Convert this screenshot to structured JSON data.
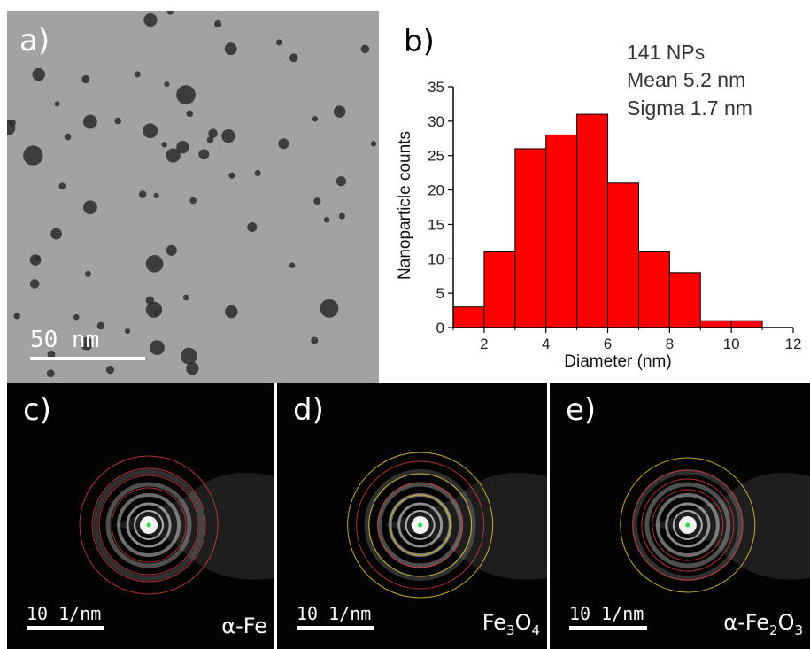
{
  "panels": {
    "a": {
      "label": "a)",
      "scale_bar": "50 nm"
    },
    "b": {
      "label": "b)"
    },
    "c": {
      "label": "c)",
      "scale_bar": "10 1/nm",
      "phase": "α-Fe"
    },
    "d": {
      "label": "d)",
      "scale_bar": "10 1/nm",
      "phase_parts": [
        "Fe",
        "3",
        "O",
        "4"
      ]
    },
    "e": {
      "label": "e)",
      "scale_bar": "10 1/nm",
      "phase_parts": [
        "α-Fe",
        "2",
        "O",
        "3"
      ]
    }
  },
  "chart_data": {
    "type": "bar",
    "bin_edges": [
      1,
      2,
      3,
      4,
      5,
      6,
      7,
      8,
      9,
      10,
      11
    ],
    "values": [
      3,
      11,
      26,
      28,
      31,
      21,
      11,
      8,
      1,
      1
    ],
    "xlabel": "Diameter (nm)",
    "ylabel": "Nanoparticle counts",
    "xlim": [
      1,
      12
    ],
    "ylim": [
      0,
      35
    ],
    "x_ticks": [
      2,
      4,
      6,
      8,
      10,
      12
    ],
    "y_ticks": [
      0,
      5,
      10,
      15,
      20,
      25,
      30,
      35
    ],
    "annotations": [
      "141 NPs",
      "Mean 5.2 nm",
      "Sigma 1.7 nm"
    ],
    "bar_color": "#ff0000",
    "edge_color": "#000000"
  },
  "colors": {
    "ring_red": "#d23a3a",
    "ring_yellow": "#e6c52e",
    "beam_center": "#22dd44"
  }
}
